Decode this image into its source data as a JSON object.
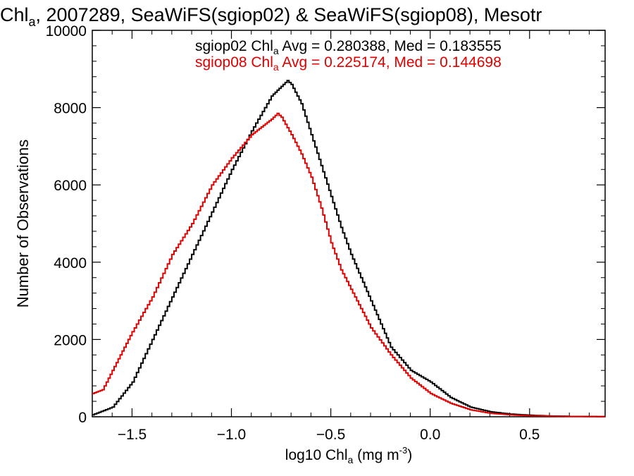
{
  "chart_data": {
    "type": "line",
    "title_main": "Chl",
    "title_sub": "a",
    "title_rest": ", 2007289, SeaWiFS(sgiop02) & SeaWiFS(sgiop08), Mesotr",
    "ylabel": "Number of Observations",
    "xlabel_pre": "log10 Chl",
    "xlabel_sub": "a",
    "xlabel_post": " (mg m",
    "xlabel_sup": "-3",
    "xlabel_end": ")",
    "xlim": [
      -1.7,
      0.88
    ],
    "ylim": [
      0,
      10000
    ],
    "x_ticks": [
      -1.5,
      -1.0,
      -0.5,
      0.0,
      0.5
    ],
    "x_tick_labels": [
      "−1.5",
      "−1.0",
      "−0.5",
      "0.0",
      "0.5"
    ],
    "y_ticks": [
      0,
      2000,
      4000,
      6000,
      8000,
      10000
    ],
    "y_tick_labels": [
      "0",
      "2000",
      "4000",
      "6000",
      "8000",
      "10000"
    ],
    "grid": false,
    "series": [
      {
        "name": "sgiop02",
        "color": "#000000",
        "annotation": {
          "pre": "sgiop02 Chl",
          "sub": "a",
          "post": " Avg = 0.280388, Med = 0.183555"
        },
        "points": [
          [
            -1.7,
            50
          ],
          [
            -1.6,
            250
          ],
          [
            -1.5,
            900
          ],
          [
            -1.4,
            2000
          ],
          [
            -1.3,
            3100
          ],
          [
            -1.2,
            4200
          ],
          [
            -1.1,
            5300
          ],
          [
            -1.0,
            6400
          ],
          [
            -0.9,
            7400
          ],
          [
            -0.8,
            8300
          ],
          [
            -0.75,
            8550
          ],
          [
            -0.72,
            8700
          ],
          [
            -0.7,
            8600
          ],
          [
            -0.65,
            8100
          ],
          [
            -0.6,
            7300
          ],
          [
            -0.55,
            6500
          ],
          [
            -0.5,
            5700
          ],
          [
            -0.45,
            4900
          ],
          [
            -0.4,
            4200
          ],
          [
            -0.35,
            3600
          ],
          [
            -0.3,
            3000
          ],
          [
            -0.25,
            2400
          ],
          [
            -0.2,
            1800
          ],
          [
            -0.1,
            1200
          ],
          [
            0.0,
            900
          ],
          [
            0.1,
            500
          ],
          [
            0.2,
            250
          ],
          [
            0.3,
            130
          ],
          [
            0.4,
            70
          ],
          [
            0.5,
            40
          ],
          [
            0.6,
            20
          ],
          [
            0.7,
            10
          ],
          [
            0.88,
            5
          ]
        ]
      },
      {
        "name": "sgiop08",
        "color": "#e00000",
        "annotation": {
          "pre": "sgiop08 Chl",
          "sub": "a",
          "post": " Avg = 0.225174, Med = 0.144698"
        },
        "points": [
          [
            -1.7,
            600
          ],
          [
            -1.65,
            700
          ],
          [
            -1.6,
            1200
          ],
          [
            -1.55,
            1700
          ],
          [
            -1.5,
            2200
          ],
          [
            -1.4,
            3100
          ],
          [
            -1.3,
            4200
          ],
          [
            -1.2,
            5000
          ],
          [
            -1.1,
            6000
          ],
          [
            -1.0,
            6700
          ],
          [
            -0.9,
            7300
          ],
          [
            -0.85,
            7500
          ],
          [
            -0.8,
            7700
          ],
          [
            -0.77,
            7850
          ],
          [
            -0.75,
            7750
          ],
          [
            -0.7,
            7300
          ],
          [
            -0.65,
            6800
          ],
          [
            -0.6,
            6200
          ],
          [
            -0.55,
            5400
          ],
          [
            -0.5,
            4500
          ],
          [
            -0.45,
            3800
          ],
          [
            -0.4,
            3300
          ],
          [
            -0.35,
            2800
          ],
          [
            -0.3,
            2300
          ],
          [
            -0.2,
            1600
          ],
          [
            -0.1,
            1000
          ],
          [
            0.0,
            600
          ],
          [
            0.1,
            350
          ],
          [
            0.2,
            180
          ],
          [
            0.3,
            90
          ],
          [
            0.4,
            50
          ],
          [
            0.5,
            25
          ],
          [
            0.7,
            10
          ],
          [
            0.88,
            5
          ]
        ]
      }
    ]
  }
}
